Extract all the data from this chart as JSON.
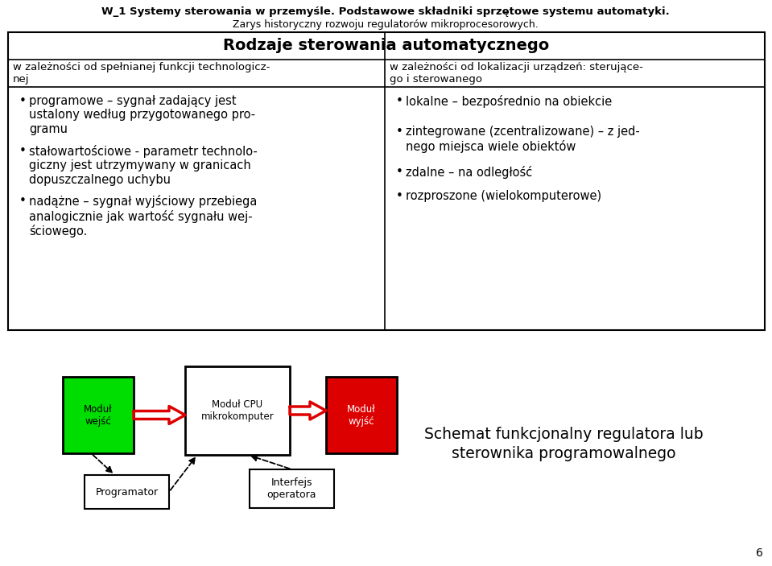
{
  "title_line1": "W_1 Systemy sterowania w przemyśle. Podstawowe składniki sprzętowe systemu automatyki.",
  "title_line2": "Zarys historyczny rozwoju regulatorów mikroprocesorowych.",
  "table_header": "Rodzaje sterowania automatycznego",
  "col1_header_line1": "w zależności od spełnianej funkcji technologicz-",
  "col1_header_line2": "nej",
  "col2_header_line1": "w zależności od lokalizacji urządzeń: sterujące-",
  "col2_header_line2": "go i sterowanego",
  "col1_item1": "programowe – sygnał zadający jest\nustalony według przygotowanego pro-\ngramu",
  "col1_item2": "stałowartościowe - parametr technolo-\ngiczny jest utrzymywany w granicach\ndopuszczalnego uchybu",
  "col1_item3": "nadążne – sygnał wyjściowy przebiega\nanalogicznie jak wartość sygnału wej-\nściowego.",
  "col2_item1": "lokalne – bezpośrednio na obiekcie",
  "col2_item2": "zintegrowane (zcentralizowane) – z jed-\nnego miejsca wiele obiektów",
  "col2_item3": "zdalne – na odległość",
  "col2_item4": "rozproszone (wielokomputerowe)",
  "box_green_label": "Moduł\nwejść",
  "box_cpu_label": "Moduł CPU\nmikrokomputer",
  "box_red_label": "Moduł\nwyjść",
  "box_prog_label": "Programator",
  "box_interf_label": "Interfejs\noperatora",
  "diagram_caption_line1": "Schemat funkcjonalny regulatora lub",
  "diagram_caption_line2": "sterownika programowalnego",
  "page_number": "6",
  "bg_color": "#ffffff",
  "green_color": "#00dd00",
  "red_color": "#dd0000",
  "arrow_red": "#dd0000"
}
